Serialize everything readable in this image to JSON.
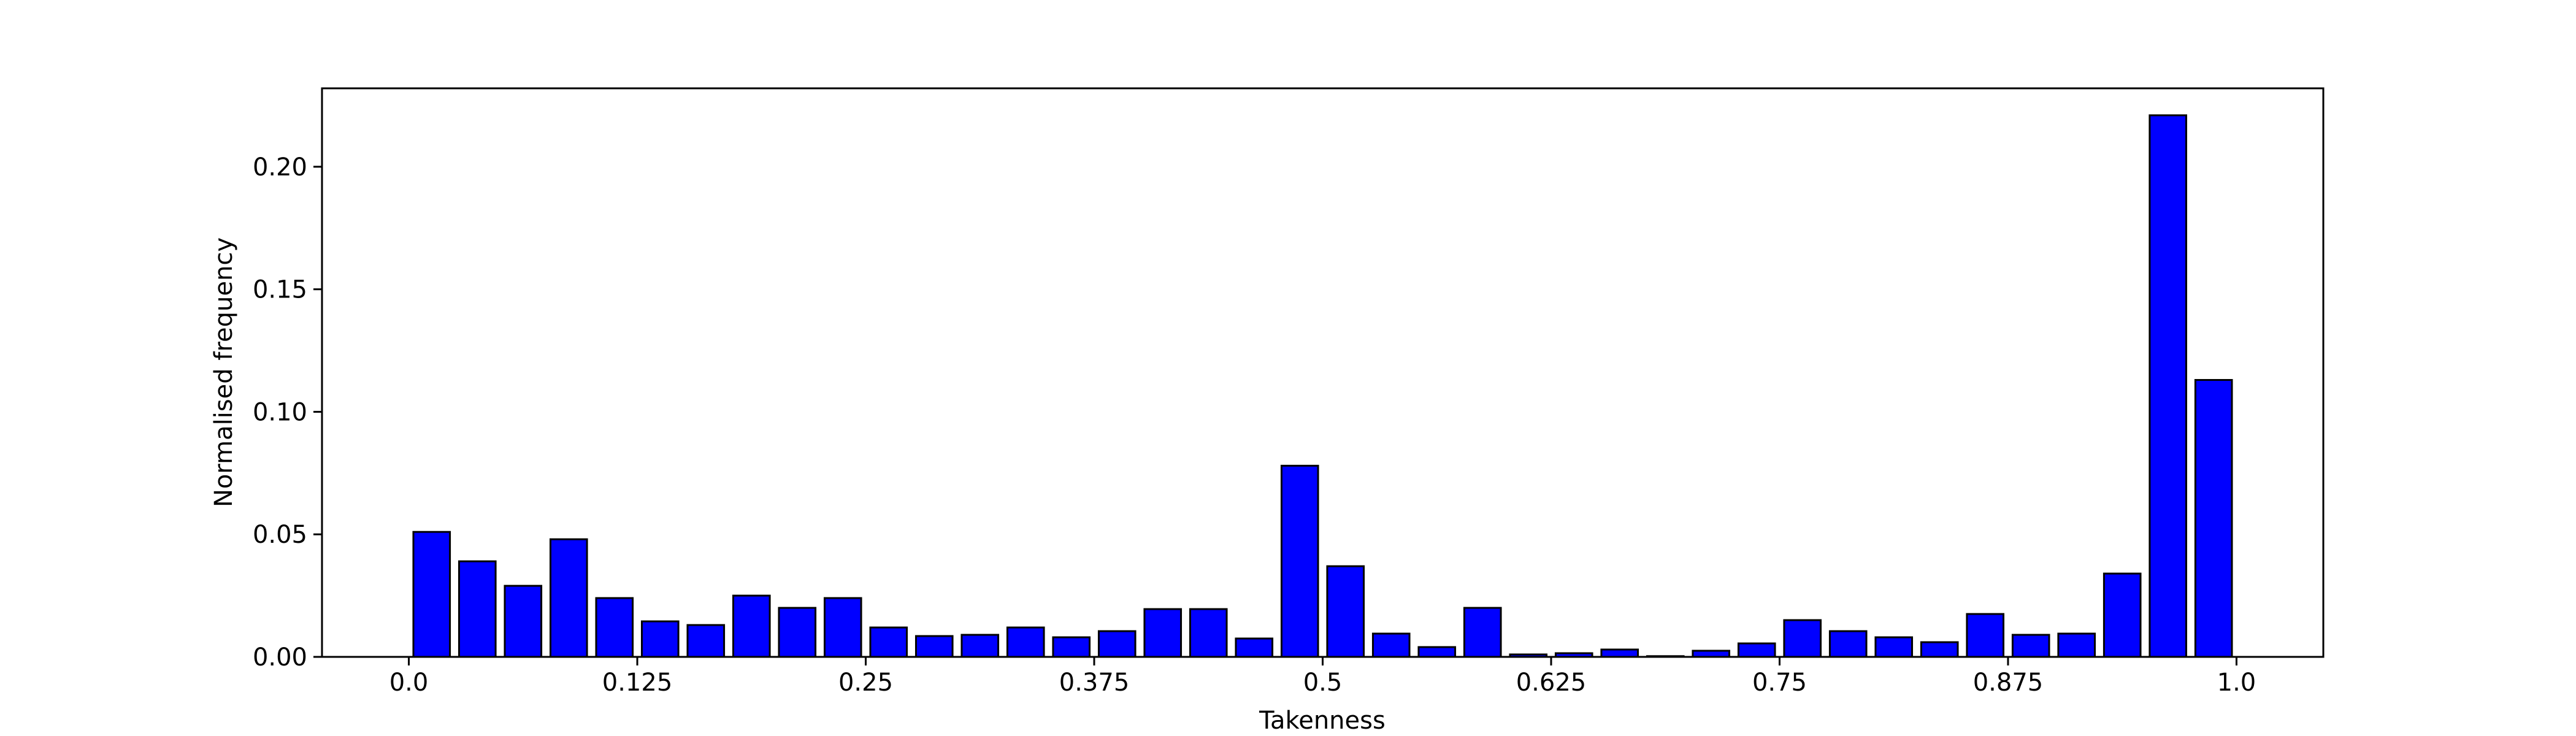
{
  "chart_data": {
    "type": "bar",
    "title": "",
    "xlabel": "Takenness",
    "ylabel": "Normalised frequency",
    "x_ticks": [
      {
        "value": 0.0,
        "label": "0.0"
      },
      {
        "value": 0.125,
        "label": "0.125"
      },
      {
        "value": 0.25,
        "label": "0.25"
      },
      {
        "value": 0.375,
        "label": "0.375"
      },
      {
        "value": 0.5,
        "label": "0.5"
      },
      {
        "value": 0.625,
        "label": "0.625"
      },
      {
        "value": 0.75,
        "label": "0.75"
      },
      {
        "value": 0.875,
        "label": "0.875"
      },
      {
        "value": 1.0,
        "label": "1.0"
      }
    ],
    "y_ticks": [
      {
        "value": 0.0,
        "label": "0.00"
      },
      {
        "value": 0.05,
        "label": "0.05"
      },
      {
        "value": 0.1,
        "label": "0.10"
      },
      {
        "value": 0.15,
        "label": "0.15"
      },
      {
        "value": 0.2,
        "label": "0.20"
      }
    ],
    "xlim": [
      -0.0475,
      1.0475
    ],
    "ylim": [
      0,
      0.232
    ],
    "bar_width": 0.02,
    "x": [
      0.0125,
      0.0375,
      0.0625,
      0.0875,
      0.1125,
      0.1375,
      0.1625,
      0.1875,
      0.2125,
      0.2375,
      0.2625,
      0.2875,
      0.3125,
      0.3375,
      0.3625,
      0.3875,
      0.4125,
      0.4375,
      0.4625,
      0.4875,
      0.5125,
      0.5375,
      0.5625,
      0.5875,
      0.6125,
      0.6375,
      0.6625,
      0.6875,
      0.7125,
      0.7375,
      0.7625,
      0.7875,
      0.8125,
      0.8375,
      0.8625,
      0.8875,
      0.9125,
      0.9375,
      0.9625,
      0.9875
    ],
    "values": [
      0.051,
      0.039,
      0.029,
      0.048,
      0.024,
      0.0145,
      0.013,
      0.025,
      0.02,
      0.024,
      0.012,
      0.0085,
      0.009,
      0.012,
      0.008,
      0.0105,
      0.0195,
      0.0195,
      0.0075,
      0.078,
      0.037,
      0.0095,
      0.004,
      0.02,
      0.001,
      0.0015,
      0.003,
      0.0003,
      0.0025,
      0.0055,
      0.015,
      0.0105,
      0.008,
      0.006,
      0.0175,
      0.009,
      0.0095,
      0.034,
      0.221,
      0.113
    ],
    "bar_color": "#0000ff",
    "edge_color": "#000000",
    "grid": false,
    "legend": "none"
  }
}
